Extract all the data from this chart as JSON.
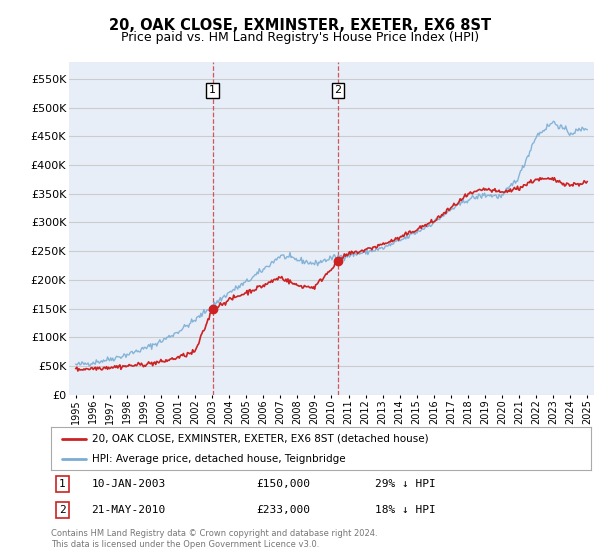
{
  "title": "20, OAK CLOSE, EXMINSTER, EXETER, EX6 8ST",
  "subtitle": "Price paid vs. HM Land Registry's House Price Index (HPI)",
  "ytick_values": [
    0,
    50000,
    100000,
    150000,
    200000,
    250000,
    300000,
    350000,
    400000,
    450000,
    500000,
    550000
  ],
  "ylim": [
    0,
    580000
  ],
  "xlim_start": 1994.6,
  "xlim_end": 2025.4,
  "sale1_date": 2003.03,
  "sale1_price": 150000,
  "sale1_label": "1",
  "sale2_date": 2010.38,
  "sale2_price": 233000,
  "sale2_label": "2",
  "hpi_color": "#7aadd4",
  "price_color": "#cc2222",
  "dashed_color": "#cc3333",
  "background_color": "#e8eef8",
  "grid_color": "#cccccc",
  "legend_label_price": "20, OAK CLOSE, EXMINSTER, EXETER, EX6 8ST (detached house)",
  "legend_label_hpi": "HPI: Average price, detached house, Teignbridge",
  "footer": "Contains HM Land Registry data © Crown copyright and database right 2024.\nThis data is licensed under the Open Government Licence v3.0.",
  "title_fontsize": 10.5,
  "subtitle_fontsize": 9,
  "xtick_years": [
    1995,
    1996,
    1997,
    1998,
    1999,
    2000,
    2001,
    2002,
    2003,
    2004,
    2005,
    2006,
    2007,
    2008,
    2009,
    2010,
    2011,
    2012,
    2013,
    2014,
    2015,
    2016,
    2017,
    2018,
    2019,
    2020,
    2021,
    2022,
    2023,
    2024,
    2025
  ]
}
